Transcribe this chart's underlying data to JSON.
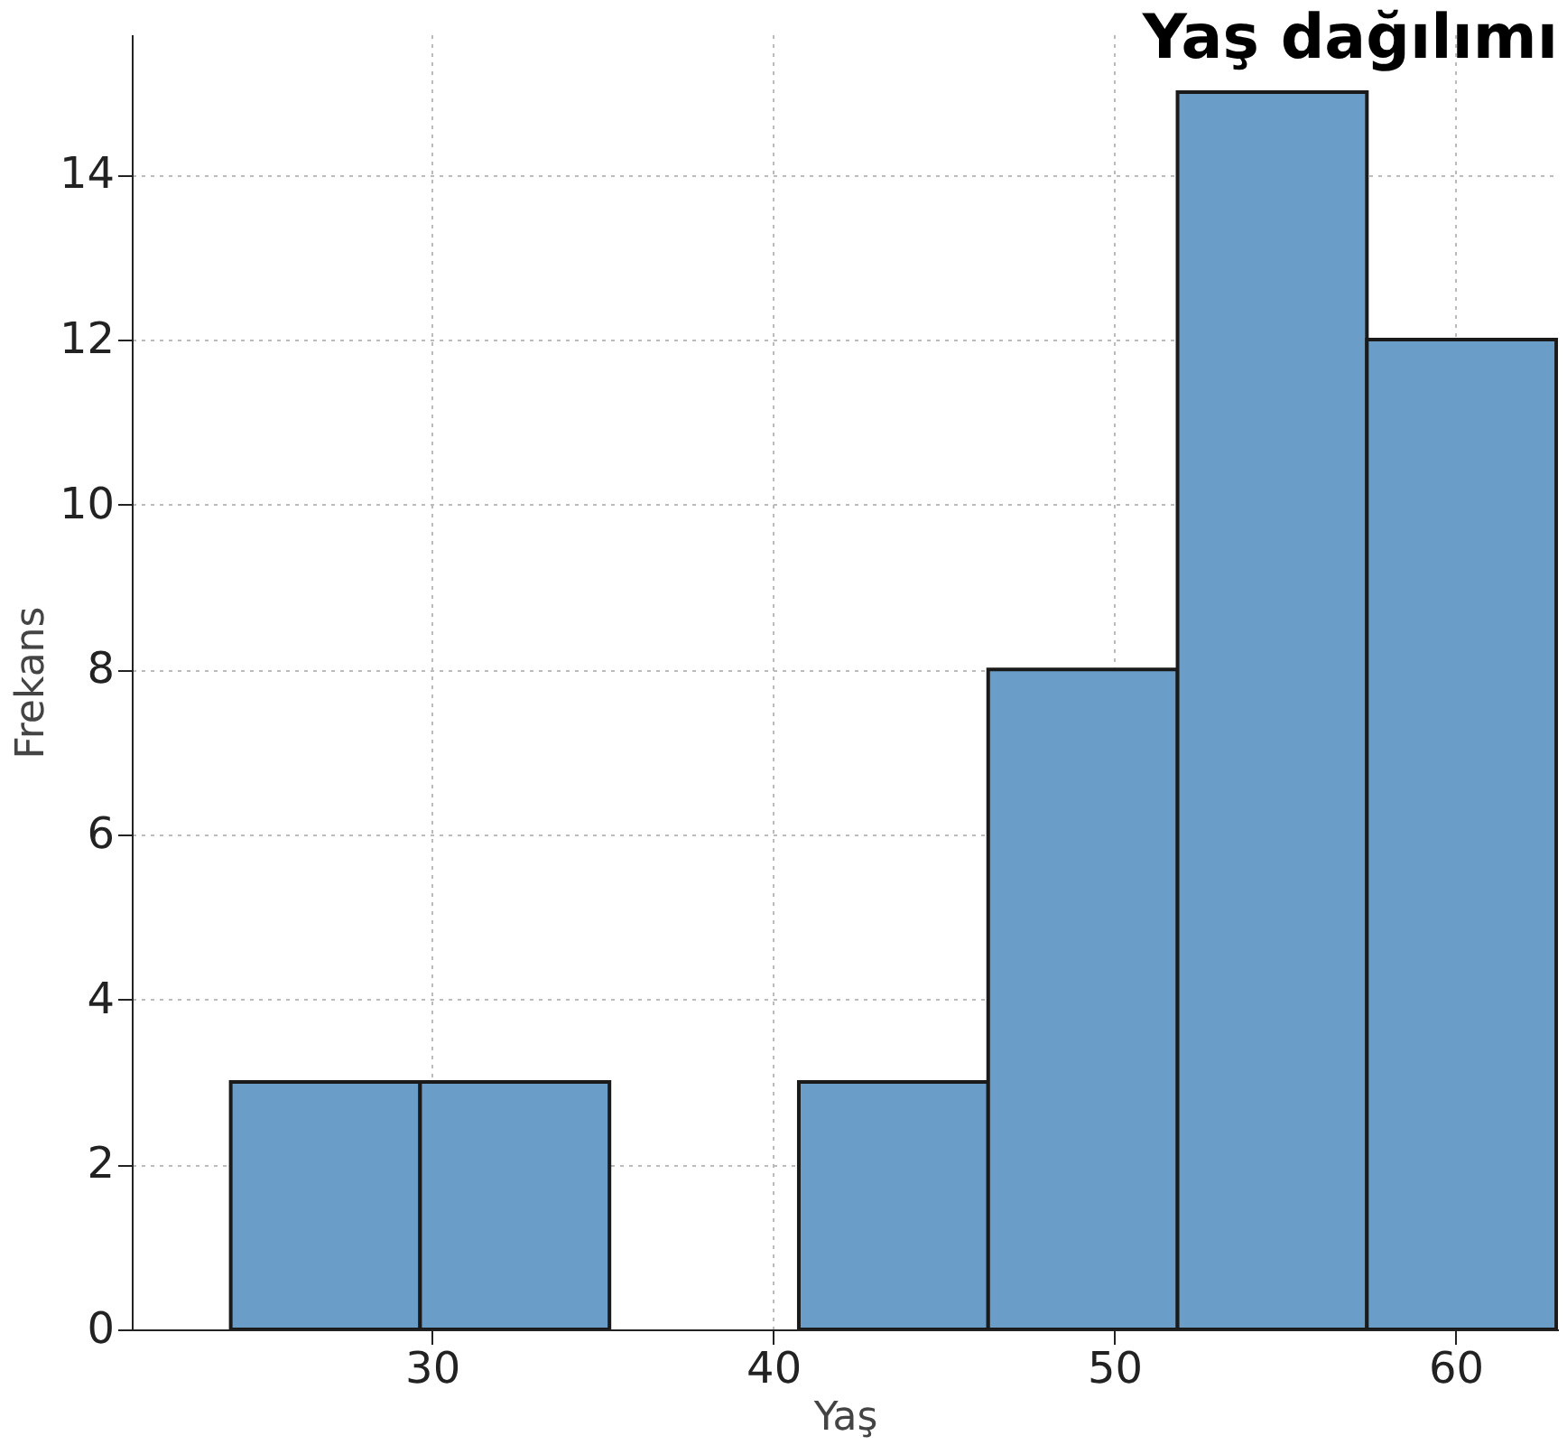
{
  "chart_data": {
    "type": "histogram",
    "title": "Yaş dağılımı",
    "xlabel": "Yaş",
    "ylabel": "Frekans",
    "bins": [
      24.1,
      29.65,
      35.2,
      40.75,
      46.3,
      51.85,
      57.4,
      62.95
    ],
    "values": [
      3,
      3,
      0,
      3,
      8,
      15,
      12
    ],
    "color": "#6a9ec9",
    "xlim": [
      21.2,
      63
    ],
    "xticks": [
      30,
      40,
      50,
      60
    ],
    "ylim": [
      0,
      15.7
    ],
    "yticks": [
      0,
      2,
      4,
      6,
      8,
      10,
      12,
      14
    ],
    "grid": true
  }
}
